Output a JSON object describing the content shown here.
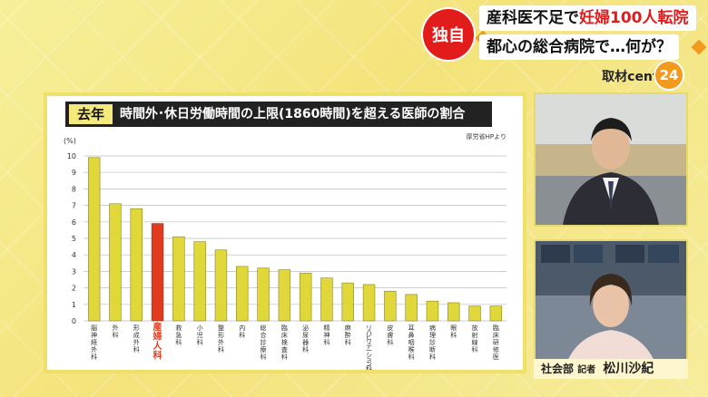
{
  "banner": {
    "exclusive": "独自",
    "line1_black": "産科医不足で",
    "line1_red": "妊婦100人転院",
    "line2": "都心の総合病院で…何が？",
    "program": "取材center",
    "program_logo": "24"
  },
  "panel": {
    "tag": "去年",
    "title": "時間外･休日労働時間の上限(1860時間)を超える医師の割合",
    "source": "厚労省HPより"
  },
  "caption": {
    "dept": "社会部",
    "role": "記者",
    "name": "松川沙紀"
  },
  "colors": {
    "bar": "#e0d83a",
    "highlight": "#e23a1e",
    "grid": "#bdbdbd"
  },
  "chart_data": {
    "type": "bar",
    "ylabel": "(%)",
    "ylim": [
      0,
      10
    ],
    "yticks": [
      0,
      1,
      2,
      3,
      4,
      5,
      6,
      7,
      8,
      9,
      10
    ],
    "categories": [
      "脳神経外科",
      "外科",
      "形成外科",
      "産婦人科",
      "救急科",
      "小児科",
      "整形外科",
      "内科",
      "総合診療科",
      "臨床検査科",
      "泌尿器科",
      "精神科",
      "麻酔科",
      "リハビリテーション科",
      "皮膚科",
      "耳鼻咽喉科",
      "病理診断科",
      "眼科",
      "放射線科",
      "臨床研修医"
    ],
    "values": [
      9.9,
      7.1,
      6.8,
      5.9,
      5.1,
      4.8,
      4.3,
      3.3,
      3.2,
      3.1,
      2.9,
      2.6,
      2.3,
      2.2,
      1.8,
      1.6,
      1.2,
      1.1,
      0.9,
      0.9
    ],
    "highlight_index": 3
  }
}
